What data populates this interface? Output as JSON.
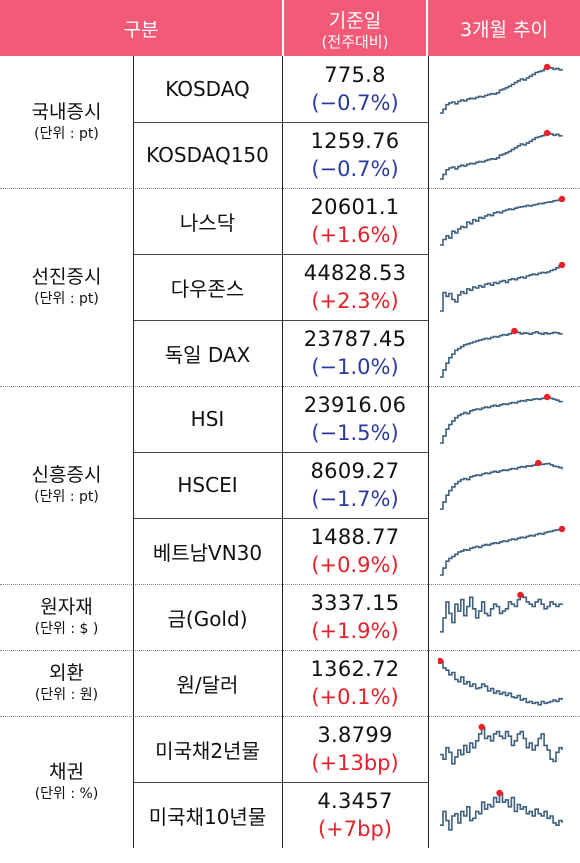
{
  "header": {
    "category": "구분",
    "base_date": "기준일",
    "base_date_sub": "(전주대비)",
    "trend": "3개월 추이"
  },
  "groups": [
    {
      "name": "국내증시",
      "unit": "(단위 : pt)",
      "rows": [
        {
          "name": "KOSDAQ",
          "value": "775.8",
          "change": "(−0.7%)",
          "direction": "down"
        },
        {
          "name": "KOSDAQ150",
          "value": "1259.76",
          "change": "(−0.7%)",
          "direction": "down"
        }
      ]
    },
    {
      "name": "선진증시",
      "unit": "(단위 : pt)",
      "rows": [
        {
          "name": "나스닥",
          "value": "20601.1",
          "change": "(+1.6%)",
          "direction": "up"
        },
        {
          "name": "다우존스",
          "value": "44828.53",
          "change": "(+2.3%)",
          "direction": "up"
        },
        {
          "name": "독일 DAX",
          "value": "23787.45",
          "change": "(−1.0%)",
          "direction": "down"
        }
      ]
    },
    {
      "name": "신흥증시",
      "unit": "(단위 : pt)",
      "rows": [
        {
          "name": "HSI",
          "value": "23916.06",
          "change": "(−1.5%)",
          "direction": "down"
        },
        {
          "name": "HSCEI",
          "value": "8609.27",
          "change": "(−1.7%)",
          "direction": "down"
        },
        {
          "name": "베트남VN30",
          "value": "1488.77",
          "change": "(+0.9%)",
          "direction": "up"
        }
      ]
    },
    {
      "name": "원자재",
      "unit": "(단위 : $ )",
      "rows": [
        {
          "name": "금(Gold)",
          "value": "3337.15",
          "change": "(+1.9%)",
          "direction": "up"
        }
      ]
    },
    {
      "name": "외환",
      "unit": "(단위 : 원)",
      "rows": [
        {
          "name": "원/달러",
          "value": "1362.72",
          "change": "(+0.1%)",
          "direction": "up"
        }
      ]
    },
    {
      "name": "채권",
      "unit": "(단위 : %)",
      "rows": [
        {
          "name": "미국채2년물",
          "value": "3.8799",
          "change": "(+13bp)",
          "direction": "up"
        },
        {
          "name": "미국채10년물",
          "value": "4.3457",
          "change": "(+7bp)",
          "direction": "up"
        }
      ]
    }
  ],
  "colors": {
    "header_bg": "#f25a78",
    "negative": "#2b3a9e",
    "positive": "#e8202a",
    "sparkline": "#3e5f7d",
    "peak_marker": "#e8202a"
  },
  "sparklines": [
    {
      "series": [
        0.0,
        0.08,
        0.18,
        0.22,
        0.24,
        0.2,
        0.25,
        0.28,
        0.26,
        0.3,
        0.32,
        0.31,
        0.34,
        0.36,
        0.35,
        0.38,
        0.4,
        0.42,
        0.41,
        0.44,
        0.5,
        0.52,
        0.55,
        0.58,
        0.62,
        0.66,
        0.7,
        0.74,
        0.72,
        0.76,
        0.8,
        0.84,
        0.88,
        0.9,
        0.92,
        0.96,
        1.0,
        0.98,
        0.95,
        0.97,
        0.94,
        0.96
      ],
      "peak": 36
    },
    {
      "series": [
        0.0,
        0.1,
        0.2,
        0.24,
        0.26,
        0.22,
        0.27,
        0.3,
        0.28,
        0.32,
        0.34,
        0.33,
        0.36,
        0.38,
        0.37,
        0.4,
        0.42,
        0.44,
        0.43,
        0.46,
        0.52,
        0.54,
        0.57,
        0.6,
        0.64,
        0.68,
        0.72,
        0.76,
        0.74,
        0.78,
        0.82,
        0.86,
        0.9,
        0.92,
        0.94,
        0.97,
        1.0,
        0.98,
        0.95,
        0.97,
        0.94,
        0.95
      ],
      "peak": 36
    },
    {
      "series": [
        0.0,
        0.12,
        0.2,
        0.15,
        0.3,
        0.26,
        0.35,
        0.4,
        0.38,
        0.5,
        0.46,
        0.55,
        0.52,
        0.6,
        0.58,
        0.63,
        0.66,
        0.64,
        0.7,
        0.72,
        0.7,
        0.74,
        0.76,
        0.78,
        0.77,
        0.8,
        0.82,
        0.83,
        0.84,
        0.86,
        0.85,
        0.87,
        0.88,
        0.9,
        0.9,
        0.92,
        0.93,
        0.94,
        0.96,
        0.97,
        0.99,
        1.0
      ],
      "peak": 41
    },
    {
      "series": [
        0.0,
        0.4,
        0.32,
        0.38,
        0.25,
        0.2,
        0.35,
        0.42,
        0.38,
        0.48,
        0.45,
        0.52,
        0.5,
        0.55,
        0.52,
        0.58,
        0.6,
        0.56,
        0.62,
        0.6,
        0.64,
        0.66,
        0.62,
        0.68,
        0.7,
        0.68,
        0.72,
        0.74,
        0.72,
        0.76,
        0.78,
        0.8,
        0.79,
        0.82,
        0.84,
        0.83,
        0.85,
        0.88,
        0.9,
        0.94,
        0.98,
        1.0
      ],
      "peak": 41
    },
    {
      "series": [
        0.0,
        0.15,
        0.3,
        0.42,
        0.5,
        0.58,
        0.62,
        0.66,
        0.7,
        0.72,
        0.74,
        0.76,
        0.78,
        0.8,
        0.82,
        0.84,
        0.83,
        0.86,
        0.88,
        0.87,
        0.9,
        0.92,
        0.91,
        0.94,
        0.96,
        1.0,
        0.97,
        0.94,
        0.96,
        0.95,
        0.93,
        0.96,
        0.98,
        0.95,
        0.93,
        0.96,
        0.94,
        0.95,
        0.97,
        0.96,
        0.94,
        0.95
      ],
      "peak": 25
    },
    {
      "series": [
        0.0,
        0.15,
        0.3,
        0.4,
        0.48,
        0.55,
        0.6,
        0.63,
        0.66,
        0.64,
        0.7,
        0.72,
        0.74,
        0.73,
        0.76,
        0.78,
        0.77,
        0.8,
        0.82,
        0.8,
        0.83,
        0.85,
        0.84,
        0.86,
        0.88,
        0.87,
        0.9,
        0.92,
        0.91,
        0.94,
        0.93,
        0.95,
        0.96,
        0.95,
        0.97,
        0.98,
        1.0,
        0.97,
        0.95,
        0.93,
        0.9,
        0.88
      ],
      "peak": 36
    },
    {
      "series": [
        0.0,
        0.15,
        0.3,
        0.4,
        0.48,
        0.55,
        0.6,
        0.64,
        0.66,
        0.64,
        0.7,
        0.72,
        0.74,
        0.73,
        0.76,
        0.78,
        0.77,
        0.8,
        0.82,
        0.8,
        0.83,
        0.85,
        0.84,
        0.86,
        0.88,
        0.87,
        0.9,
        0.92,
        0.91,
        0.94,
        0.93,
        0.95,
        0.96,
        1.0,
        0.97,
        0.98,
        0.99,
        0.96,
        0.93,
        0.92,
        0.9,
        0.86
      ],
      "peak": 33
    },
    {
      "series": [
        0.0,
        0.15,
        0.3,
        0.36,
        0.4,
        0.45,
        0.5,
        0.52,
        0.55,
        0.54,
        0.58,
        0.6,
        0.62,
        0.6,
        0.64,
        0.66,
        0.65,
        0.68,
        0.7,
        0.69,
        0.72,
        0.74,
        0.73,
        0.76,
        0.78,
        0.77,
        0.8,
        0.82,
        0.81,
        0.84,
        0.86,
        0.85,
        0.88,
        0.9,
        0.89,
        0.92,
        0.94,
        0.95,
        0.97,
        0.98,
        0.99,
        1.0
      ],
      "peak": 41
    },
    {
      "series": [
        0.2,
        0.5,
        0.85,
        0.6,
        0.4,
        0.8,
        0.65,
        0.9,
        0.55,
        0.75,
        0.95,
        0.7,
        0.5,
        0.65,
        0.85,
        0.6,
        0.55,
        0.7,
        0.8,
        0.75,
        0.6,
        0.65,
        0.7,
        0.85,
        0.8,
        0.75,
        0.9,
        1.0,
        0.95,
        0.85,
        0.8,
        0.75,
        0.85,
        0.9,
        0.8,
        0.7,
        0.75,
        0.85,
        0.8,
        0.75,
        0.8,
        0.78
      ],
      "peak": 27
    },
    {
      "series": [
        1.0,
        0.85,
        0.8,
        0.7,
        0.75,
        0.6,
        0.55,
        0.65,
        0.5,
        0.55,
        0.45,
        0.5,
        0.4,
        0.42,
        0.5,
        0.45,
        0.35,
        0.4,
        0.3,
        0.35,
        0.28,
        0.32,
        0.25,
        0.3,
        0.22,
        0.2,
        0.25,
        0.15,
        0.18,
        0.1,
        0.12,
        0.08,
        0.1,
        0.05,
        0.12,
        0.08,
        0.1,
        0.12,
        0.15,
        0.12,
        0.18,
        0.15
      ],
      "peak": 0
    },
    {
      "series": [
        0.4,
        0.3,
        0.55,
        0.45,
        0.2,
        0.35,
        0.5,
        0.4,
        0.6,
        0.45,
        0.65,
        0.55,
        0.7,
        0.85,
        1.0,
        0.75,
        0.8,
        0.7,
        0.85,
        0.9,
        0.8,
        0.75,
        0.9,
        0.8,
        0.6,
        0.7,
        0.85,
        0.9,
        0.75,
        0.55,
        0.65,
        0.5,
        0.6,
        0.75,
        0.85,
        0.6,
        0.5,
        0.3,
        0.25,
        0.45,
        0.55,
        0.5
      ],
      "peak": 14
    },
    {
      "series": [
        0.3,
        0.6,
        0.4,
        0.2,
        0.5,
        0.55,
        0.35,
        0.6,
        0.5,
        0.7,
        0.4,
        0.45,
        0.6,
        0.55,
        0.8,
        0.65,
        0.75,
        0.7,
        0.9,
        0.8,
        1.0,
        0.8,
        0.85,
        0.7,
        0.9,
        0.6,
        0.75,
        0.65,
        0.7,
        0.55,
        0.6,
        0.5,
        0.65,
        0.55,
        0.5,
        0.6,
        0.45,
        0.5,
        0.35,
        0.3,
        0.4,
        0.35
      ],
      "peak": 20
    }
  ]
}
